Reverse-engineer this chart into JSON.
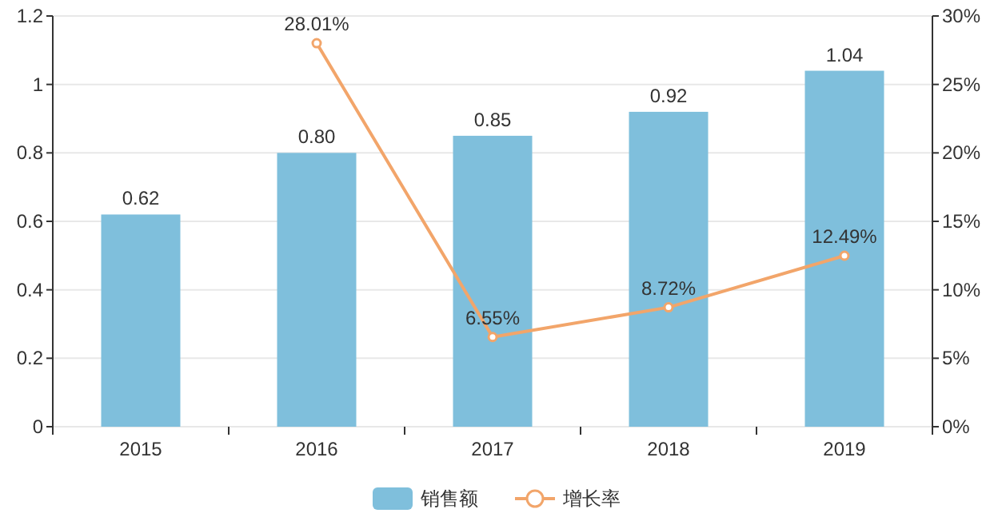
{
  "chart_data": {
    "type": "bar",
    "categories": [
      "2015",
      "2016",
      "2017",
      "2018",
      "2019"
    ],
    "series": [
      {
        "name": "销售额",
        "color": "#7fbfdc",
        "values": [
          0.62,
          0.8,
          0.85,
          0.92,
          1.04
        ],
        "value_labels": [
          "0.62",
          "0.80",
          "0.85",
          "0.92",
          "1.04"
        ]
      },
      {
        "name": "增长率",
        "type": "line",
        "axis": "y2",
        "color": "#f2a56a",
        "values": [
          null,
          28.01,
          6.55,
          8.72,
          12.49
        ],
        "value_labels": [
          null,
          "28.01%",
          "6.55%",
          "8.72%",
          "12.49%"
        ]
      }
    ],
    "ylim": [
      0,
      1.2
    ],
    "yticks": [
      0,
      0.2,
      0.4,
      0.6,
      0.8,
      1,
      1.2
    ],
    "y2lim": [
      0,
      30
    ],
    "y2ticks": [
      {
        "value": 0,
        "label": "0%"
      },
      {
        "value": 5,
        "label": "5%"
      },
      {
        "value": 10,
        "label": "10%"
      },
      {
        "value": 15,
        "label": "15%"
      },
      {
        "value": 20,
        "label": "20%"
      },
      {
        "value": 25,
        "label": "25%"
      },
      {
        "value": 30,
        "label": "30%"
      }
    ],
    "grid": "y",
    "legend": "bottom",
    "marker": "circle"
  }
}
